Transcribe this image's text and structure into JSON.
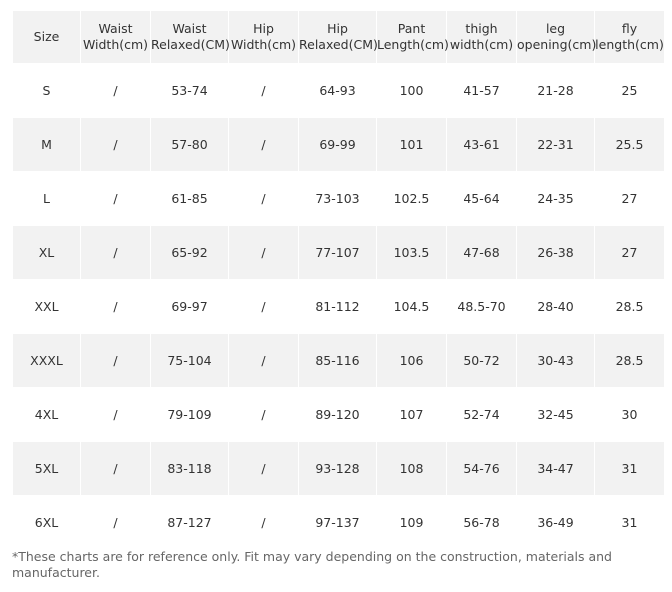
{
  "table": {
    "columns": [
      [
        "Size"
      ],
      [
        "Waist",
        "Width(cm)"
      ],
      [
        "Waist",
        "Relaxed(CM)"
      ],
      [
        "Hip",
        "Width(cm)"
      ],
      [
        "Hip",
        "Relaxed(CM)"
      ],
      [
        "Pant",
        "Length(cm)"
      ],
      [
        "thigh",
        "width(cm)"
      ],
      [
        "leg",
        "opening(cm)"
      ],
      [
        "fly",
        "length(cm)"
      ]
    ],
    "rows": [
      [
        "S",
        "/",
        "53-74",
        "/",
        "64-93",
        "100",
        "41-57",
        "21-28",
        "25"
      ],
      [
        "M",
        "/",
        "57-80",
        "/",
        "69-99",
        "101",
        "43-61",
        "22-31",
        "25.5"
      ],
      [
        "L",
        "/",
        "61-85",
        "/",
        "73-103",
        "102.5",
        "45-64",
        "24-35",
        "27"
      ],
      [
        "XL",
        "/",
        "65-92",
        "/",
        "77-107",
        "103.5",
        "47-68",
        "26-38",
        "27"
      ],
      [
        "XXL",
        "/",
        "69-97",
        "/",
        "81-112",
        "104.5",
        "48.5-70",
        "28-40",
        "28.5"
      ],
      [
        "XXXL",
        "/",
        "75-104",
        "/",
        "85-116",
        "106",
        "50-72",
        "30-43",
        "28.5"
      ],
      [
        "4XL",
        "/",
        "79-109",
        "/",
        "89-120",
        "107",
        "52-74",
        "32-45",
        "30"
      ],
      [
        "5XL",
        "/",
        "83-118",
        "/",
        "93-128",
        "108",
        "54-76",
        "34-47",
        "31"
      ],
      [
        "6XL",
        "/",
        "87-127",
        "/",
        "97-137",
        "109",
        "56-78",
        "36-49",
        "31"
      ]
    ]
  },
  "footnote": "*These charts are for reference only. Fit may vary depending on the construction, materials and manufacturer."
}
